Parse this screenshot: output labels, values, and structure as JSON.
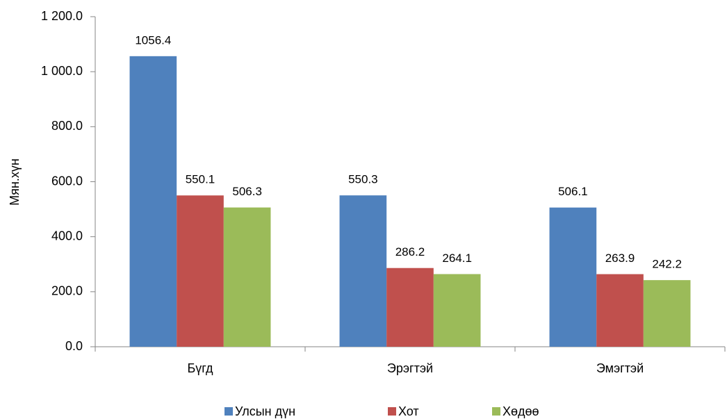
{
  "chart_data": {
    "type": "bar",
    "y_label": "Мян.хүн",
    "categories": [
      "Бүгд",
      "Эрэгтэй",
      "Эмэгтэй"
    ],
    "series": [
      {
        "name": "Улсын дүн",
        "color": "#4f81bd",
        "values": [
          1056.4,
          550.3,
          506.1
        ]
      },
      {
        "name": "Хот",
        "color": "#c0504d",
        "values": [
          550.1,
          286.2,
          263.9
        ]
      },
      {
        "name": "Хөдөө",
        "color": "#9bbb59",
        "values": [
          506.3,
          264.1,
          242.2
        ]
      }
    ],
    "ylim": [
      0,
      1200
    ],
    "yticks": [
      {
        "value": 0,
        "label": "0.0"
      },
      {
        "value": 200,
        "label": "200.0"
      },
      {
        "value": 400,
        "label": "400.0"
      },
      {
        "value": 600,
        "label": "600.0"
      },
      {
        "value": 800,
        "label": "800.0"
      },
      {
        "value": 1000,
        "label": "1 000.0"
      },
      {
        "value": 1200,
        "label": "1 200.0"
      }
    ],
    "grid": false,
    "legend": "bottom"
  }
}
